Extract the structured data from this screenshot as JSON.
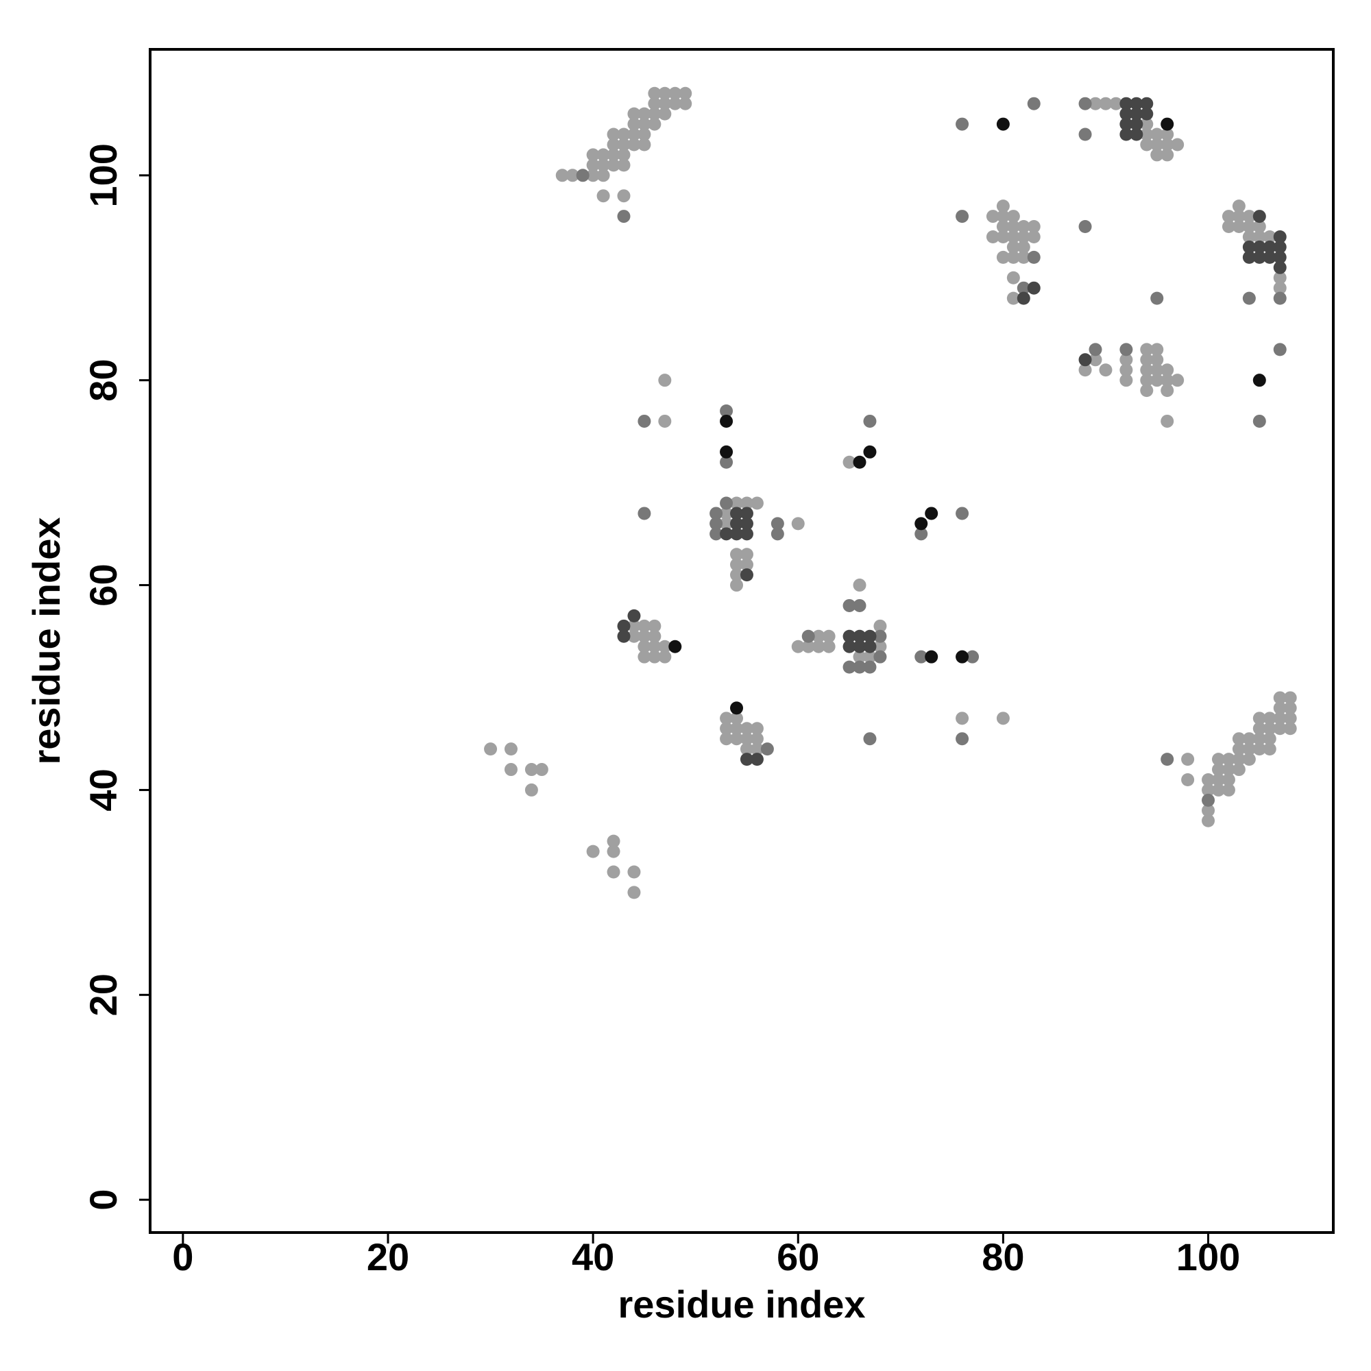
{
  "chart_data": {
    "type": "scatter",
    "xlabel": "residue index",
    "ylabel": "residue index",
    "xlim": [
      -3.2,
      112.2
    ],
    "ylim": [
      -3.2,
      112.3
    ],
    "xticks": [
      0,
      20,
      40,
      60,
      80,
      100
    ],
    "yticks": [
      0,
      20,
      40,
      60,
      80,
      100
    ],
    "series": [
      {
        "color": "#a0a0a0",
        "x": [
          37,
          38,
          40,
          41,
          40,
          41,
          42,
          40,
          41,
          42,
          43,
          42,
          43,
          44,
          42,
          43,
          44,
          43,
          44,
          45,
          46,
          44,
          45,
          45,
          46,
          47,
          46,
          47,
          48,
          49,
          46,
          47,
          48,
          49,
          41,
          43,
          45,
          79,
          80,
          79,
          80,
          81,
          82,
          83,
          80,
          81,
          82,
          83,
          80,
          81,
          80,
          81,
          82,
          81,
          81,
          82,
          81,
          89,
          90,
          91,
          94,
          94,
          95,
          95,
          96,
          96,
          96,
          95,
          97,
          94,
          88,
          89,
          90,
          92,
          92,
          92,
          94,
          95,
          94,
          95,
          94,
          95,
          96,
          94,
          95,
          96,
          97,
          94,
          96,
          96,
          103,
          102,
          103,
          102,
          103,
          104,
          104,
          104,
          105,
          105,
          106,
          107,
          107,
          53,
          53,
          54,
          55,
          56,
          54,
          55,
          54,
          55,
          54,
          54,
          60,
          47,
          47,
          65,
          44,
          45,
          46,
          44,
          45,
          46,
          45,
          46,
          47,
          45,
          46,
          47,
          60,
          61,
          62,
          62,
          63,
          63,
          66,
          66,
          67,
          68,
          68,
          76,
          80,
          53,
          54,
          53,
          54,
          55,
          56,
          53,
          54,
          55,
          56,
          55,
          56,
          30,
          32,
          32,
          34,
          35,
          34,
          40,
          42,
          42,
          42,
          44,
          44,
          98,
          98,
          100,
          100,
          100,
          100,
          101,
          101,
          101,
          101,
          102,
          102,
          102,
          102,
          103,
          103,
          104,
          104,
          104,
          105,
          105,
          106,
          106,
          106,
          106,
          107,
          107,
          107,
          107,
          108,
          108,
          108,
          108,
          105,
          105,
          103,
          103
        ],
        "values": [
          100,
          100,
          100,
          100,
          101,
          101,
          101,
          102,
          102,
          102,
          101,
          103,
          103,
          103,
          104,
          104,
          104,
          102,
          105,
          105,
          105,
          106,
          106,
          104,
          106,
          106,
          107,
          107,
          107,
          107,
          108,
          108,
          108,
          108,
          98,
          98,
          103,
          96,
          97,
          94,
          94,
          94,
          94,
          94,
          95,
          95,
          95,
          95,
          96,
          96,
          92,
          92,
          92,
          90,
          88,
          93,
          93,
          107,
          107,
          107,
          105,
          104,
          104,
          103,
          104,
          103,
          102,
          102,
          103,
          103,
          81,
          82,
          81,
          82,
          81,
          80,
          83,
          83,
          82,
          82,
          81,
          81,
          81,
          80,
          80,
          80,
          80,
          79,
          79,
          76,
          97,
          96,
          96,
          95,
          95,
          96,
          95,
          94,
          95,
          94,
          94,
          90,
          89,
          67,
          66,
          68,
          68,
          68,
          63,
          63,
          62,
          62,
          61,
          60,
          66,
          80,
          76,
          72,
          56,
          56,
          56,
          55,
          55,
          55,
          54,
          54,
          54,
          53,
          53,
          53,
          54,
          54,
          55,
          54,
          55,
          54,
          60,
          53,
          53,
          56,
          54,
          47,
          47,
          47,
          47,
          46,
          46,
          46,
          46,
          45,
          45,
          45,
          45,
          44,
          44,
          44,
          44,
          42,
          42,
          42,
          40,
          34,
          35,
          34,
          32,
          32,
          30,
          43,
          41,
          41,
          40,
          38,
          37,
          43,
          42,
          41,
          40,
          43,
          42,
          41,
          40,
          43,
          42,
          45,
          44,
          43,
          45,
          44,
          47,
          46,
          45,
          44,
          49,
          48,
          47,
          46,
          49,
          48,
          47,
          46,
          47,
          46,
          44,
          45
        ]
      },
      {
        "color": "#787878",
        "x": [
          39,
          43,
          76,
          76,
          83,
          83,
          82,
          88,
          88,
          88,
          89,
          92,
          95,
          104,
          107,
          107,
          105,
          53,
          53,
          52,
          52,
          52,
          53,
          58,
          58,
          45,
          45,
          67,
          72,
          76,
          61,
          65,
          66,
          65,
          66,
          67,
          68,
          68,
          72,
          77,
          67,
          76,
          57,
          96,
          100
        ],
        "values": [
          100,
          96,
          105,
          96,
          107,
          92,
          89,
          107,
          104,
          95,
          83,
          83,
          88,
          88,
          88,
          83,
          76,
          77,
          72,
          67,
          66,
          65,
          68,
          66,
          65,
          76,
          67,
          76,
          65,
          67,
          55,
          58,
          58,
          52,
          52,
          52,
          55,
          53,
          53,
          53,
          45,
          45,
          44,
          43,
          39
        ]
      },
      {
        "color": "#464646",
        "x": [
          83,
          82,
          92,
          93,
          93,
          94,
          92,
          92,
          92,
          93,
          93,
          94,
          88,
          105,
          104,
          105,
          106,
          107,
          104,
          105,
          106,
          107,
          107,
          107,
          54,
          55,
          54,
          55,
          54,
          55,
          53,
          55,
          43,
          43,
          44,
          65,
          66,
          67,
          65,
          66,
          67,
          55,
          56
        ],
        "values": [
          89,
          88,
          107,
          106,
          107,
          107,
          106,
          105,
          104,
          105,
          104,
          106,
          82,
          96,
          93,
          93,
          93,
          93,
          92,
          92,
          92,
          92,
          94,
          91,
          67,
          67,
          66,
          66,
          65,
          65,
          65,
          61,
          56,
          55,
          57,
          55,
          55,
          55,
          54,
          54,
          54,
          43,
          43
        ]
      },
      {
        "color": "#111111",
        "x": [
          80,
          96,
          105,
          53,
          53,
          66,
          67,
          72,
          73,
          48,
          76,
          73,
          54
        ],
        "values": [
          105,
          105,
          80,
          76,
          73,
          72,
          73,
          66,
          67,
          54,
          53,
          53,
          48
        ]
      }
    ]
  }
}
